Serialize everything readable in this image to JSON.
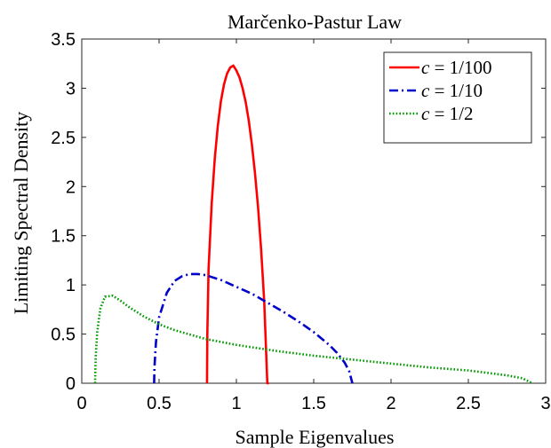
{
  "chart_data": {
    "type": "line",
    "title": "Marčenko-Pastur Law",
    "xlabel": "Sample Eigenvalues",
    "ylabel": "Limiting Spectral Density",
    "xlim": [
      0,
      3
    ],
    "ylim": [
      0,
      3.5
    ],
    "x_ticks": [
      0,
      0.5,
      1,
      1.5,
      2,
      2.5,
      3
    ],
    "x_tick_labels": [
      "0",
      "0.5",
      "1",
      "1.5",
      "2",
      "2.5",
      "3"
    ],
    "y_ticks": [
      0,
      0.5,
      1,
      1.5,
      2,
      2.5,
      3,
      3.5
    ],
    "y_tick_labels": [
      "0",
      "0.5",
      "1",
      "1.5",
      "2",
      "2.5",
      "3",
      "3.5"
    ],
    "grid": false,
    "legend_position": "top-right",
    "series": [
      {
        "name": "c = 1/100",
        "legend_lhs": "c",
        "legend_rhs": "1/100",
        "color": "#ff0000",
        "style": "solid",
        "c": 0.01,
        "x": [
          0.81,
          0.812,
          0.82,
          0.84,
          0.86,
          0.88,
          0.9,
          0.92,
          0.94,
          0.96,
          0.98,
          1.0,
          1.02,
          1.04,
          1.06,
          1.08,
          1.1,
          1.12,
          1.14,
          1.16,
          1.18,
          1.2,
          1.205,
          1.21
        ],
        "y": [
          0.0,
          0.5,
          1.16,
          1.82,
          2.28,
          2.62,
          2.87,
          3.04,
          3.15,
          3.21,
          3.23,
          3.18,
          3.11,
          3.0,
          2.86,
          2.67,
          2.43,
          2.14,
          1.79,
          1.36,
          0.83,
          0.0,
          0.0,
          0.0
        ]
      },
      {
        "name": "c = 1/10",
        "legend_lhs": "c",
        "legend_rhs": "1/10",
        "color": "#0000cc",
        "style": "dashdot",
        "c": 0.1,
        "x": [
          0.468,
          0.47,
          0.48,
          0.5,
          0.55,
          0.6,
          0.65,
          0.7,
          0.75,
          0.8,
          0.9,
          1.0,
          1.1,
          1.2,
          1.3,
          1.4,
          1.5,
          1.6,
          1.65,
          1.7,
          1.73,
          1.75
        ],
        "y": [
          0.0,
          0.16,
          0.42,
          0.67,
          0.92,
          1.04,
          1.09,
          1.11,
          1.11,
          1.1,
          1.05,
          0.98,
          0.91,
          0.82,
          0.73,
          0.63,
          0.52,
          0.39,
          0.31,
          0.21,
          0.12,
          0.0
        ]
      },
      {
        "name": "c = 1/2",
        "legend_lhs": "c",
        "legend_rhs": "1/2",
        "color": "#009900",
        "style": "dotted",
        "c": 0.5,
        "x": [
          0.086,
          0.09,
          0.1,
          0.12,
          0.15,
          0.2,
          0.25,
          0.3,
          0.4,
          0.5,
          0.6,
          0.8,
          1.0,
          1.25,
          1.5,
          1.75,
          2.0,
          2.25,
          2.5,
          2.75,
          2.85,
          2.914
        ],
        "y": [
          0.0,
          0.26,
          0.52,
          0.76,
          0.88,
          0.89,
          0.84,
          0.78,
          0.68,
          0.6,
          0.54,
          0.45,
          0.39,
          0.33,
          0.28,
          0.24,
          0.2,
          0.16,
          0.13,
          0.08,
          0.05,
          0.0
        ]
      }
    ]
  }
}
